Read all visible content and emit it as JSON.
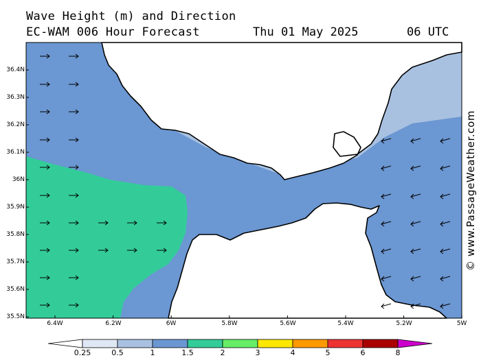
{
  "header": {
    "line1": "Wave Height (m) and Direction",
    "line2": "EC-WAM 006 Hour Forecast",
    "date": "Thu 01 May 2025",
    "time": "06 UTC"
  },
  "credit": "© www.PassageWeather.com",
  "axes": {
    "lat_labels": [
      "36.4N",
      "36.3N",
      "36.2N",
      "36.1N",
      "36N",
      "35.9N",
      "35.8N",
      "35.7N",
      "35.6N",
      "35.5N"
    ],
    "lon_labels": [
      "6.4W",
      "6.2W",
      "6W",
      "5.8W",
      "5.6W",
      "5.4W",
      "5.2W",
      "5W"
    ]
  },
  "legend": {
    "ticks": [
      "0.25",
      "0.5",
      "1",
      "1.5",
      "2",
      "3",
      "4",
      "5",
      "6",
      "8"
    ],
    "colors": [
      "#ffffff",
      "#dfe6f4",
      "#a9c1e1",
      "#6b97d2",
      "#33cc99",
      "#66ee66",
      "#ffe800",
      "#ff9900",
      "#ee3333",
      "#aa0000",
      "#cc00cc"
    ]
  },
  "colors": {
    "land": "#ffffff",
    "band_lt": "#dfe6f4",
    "band_1": "#a9c1e1",
    "band_15": "#6b97d2",
    "band_2": "#33cc99"
  },
  "arrows": {
    "west_dir": "east",
    "east_dir": "west-southwest"
  }
}
